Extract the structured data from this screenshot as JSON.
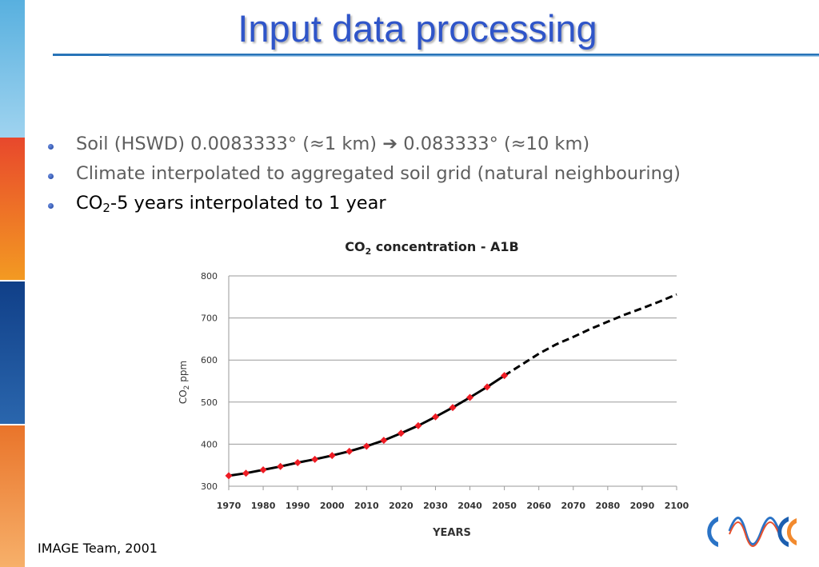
{
  "slide": {
    "title": "Input data processing",
    "colors": {
      "title": "#2f55c9",
      "rule": "#2874b8",
      "band": [
        "#5fb8e4",
        "#e8502c",
        "#f5a020",
        "#1d4f95",
        "#f28a2e"
      ]
    },
    "bullets": [
      {
        "text": "Soil (HSWD) 0.0083333° (≈1 km) ➔ 0.083333° (≈10 km)",
        "style": "gray"
      },
      {
        "text": "Climate interpolated to aggregated soil grid (natural neighbouring)",
        "style": "gray"
      },
      {
        "prefix": "CO",
        "sub": "2",
        "suffix": "-5 years interpolated to 1 year",
        "style": "black"
      }
    ],
    "credit": "IMAGE Team, 2001",
    "logo_icon": "stylized-wave-logo-icon"
  },
  "chart_data": {
    "type": "line",
    "title": {
      "prefix": "CO",
      "sub": "2",
      "suffix": " concentration - A1B"
    },
    "xlabel": "YEARS",
    "ylabel": {
      "prefix": "CO",
      "sub": "2",
      "suffix": " ppm"
    },
    "xlim": [
      1970,
      2100
    ],
    "ylim": [
      300,
      800
    ],
    "x_ticks": [
      1970,
      1980,
      1990,
      2000,
      2010,
      2020,
      2030,
      2040,
      2050,
      2060,
      2070,
      2080,
      2090,
      2100
    ],
    "y_ticks": [
      300,
      400,
      500,
      600,
      700,
      800
    ],
    "grid": "horizontal",
    "series": [
      {
        "style": "solid-with-markers",
        "line_color": "#000000",
        "marker_color": "#ee1c24",
        "x": [
          1970,
          1975,
          1980,
          1985,
          1990,
          1995,
          2000,
          2005,
          2010,
          2015,
          2020,
          2025,
          2030,
          2035,
          2040,
          2045,
          2050
        ],
        "y": [
          325,
          331,
          339,
          347,
          356,
          364,
          373,
          383,
          395,
          409,
          426,
          444,
          465,
          487,
          511,
          536,
          563
        ]
      },
      {
        "style": "dashed",
        "line_color": "#000000",
        "x": [
          2050,
          2055,
          2060,
          2065,
          2070,
          2075,
          2080,
          2085,
          2090,
          2095,
          2100
        ],
        "y": [
          563,
          589,
          615,
          637,
          655,
          674,
          691,
          708,
          723,
          739,
          756
        ]
      }
    ]
  }
}
